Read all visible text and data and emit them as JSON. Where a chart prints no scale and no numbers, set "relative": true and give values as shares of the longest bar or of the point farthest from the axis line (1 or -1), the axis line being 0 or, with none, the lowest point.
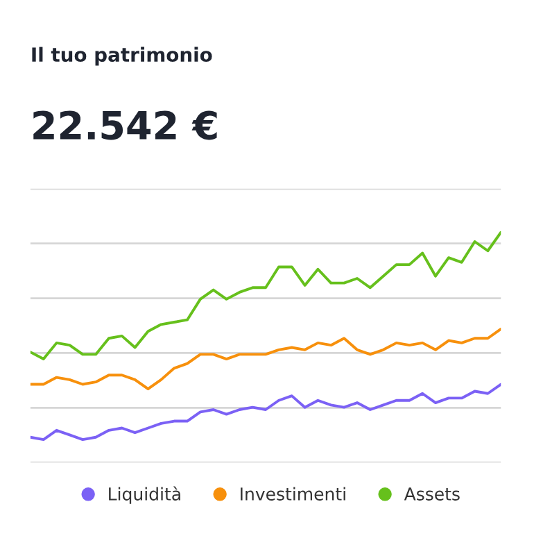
{
  "chart_data": {
    "type": "line",
    "title": "Il tuo patrimonio",
    "subtitle": "22.542 €",
    "relative": true,
    "grid": "y",
    "legend": "bottom",
    "marker": "none",
    "line_style": "solid",
    "categories": [
      null,
      null,
      null,
      null,
      null,
      null,
      null,
      null,
      null,
      null,
      null,
      null,
      null,
      null,
      null,
      null,
      null,
      null,
      null,
      null,
      null,
      null,
      null,
      null,
      null,
      null,
      null,
      null,
      null,
      null,
      null,
      null,
      null,
      null,
      null,
      null,
      null
    ],
    "series": [
      {
        "name": "Liquidità",
        "color": "#7b61f5",
        "values": [
          0.11,
          0.1,
          0.14,
          0.12,
          0.1,
          0.11,
          0.14,
          0.15,
          0.13,
          0.15,
          0.17,
          0.18,
          0.18,
          0.22,
          0.23,
          0.21,
          0.23,
          0.24,
          0.23,
          0.27,
          0.29,
          0.24,
          0.27,
          0.25,
          0.24,
          0.26,
          0.23,
          0.25,
          0.27,
          0.27,
          0.3,
          0.26,
          0.28,
          0.28,
          0.31,
          0.3,
          0.34
        ]
      },
      {
        "name": "Investimenti",
        "color": "#f7900c",
        "values": [
          0.34,
          0.34,
          0.37,
          0.36,
          0.34,
          0.35,
          0.38,
          0.38,
          0.36,
          0.32,
          0.36,
          0.41,
          0.43,
          0.47,
          0.47,
          0.45,
          0.47,
          0.47,
          0.47,
          0.49,
          0.5,
          0.49,
          0.52,
          0.51,
          0.54,
          0.49,
          0.47,
          0.49,
          0.52,
          0.51,
          0.52,
          0.49,
          0.53,
          0.52,
          0.54,
          0.54,
          0.58
        ]
      },
      {
        "name": "Assets",
        "color": "#66c01c",
        "values": [
          0.48,
          0.45,
          0.52,
          0.51,
          0.47,
          0.47,
          0.54,
          0.55,
          0.5,
          0.57,
          0.6,
          0.61,
          0.62,
          0.71,
          0.75,
          0.71,
          0.74,
          0.76,
          0.76,
          0.85,
          0.85,
          0.77,
          0.84,
          0.78,
          0.78,
          0.8,
          0.76,
          0.81,
          0.86,
          0.86,
          0.91,
          0.81,
          0.89,
          0.87,
          0.96,
          0.92,
          1.0
        ]
      }
    ]
  }
}
